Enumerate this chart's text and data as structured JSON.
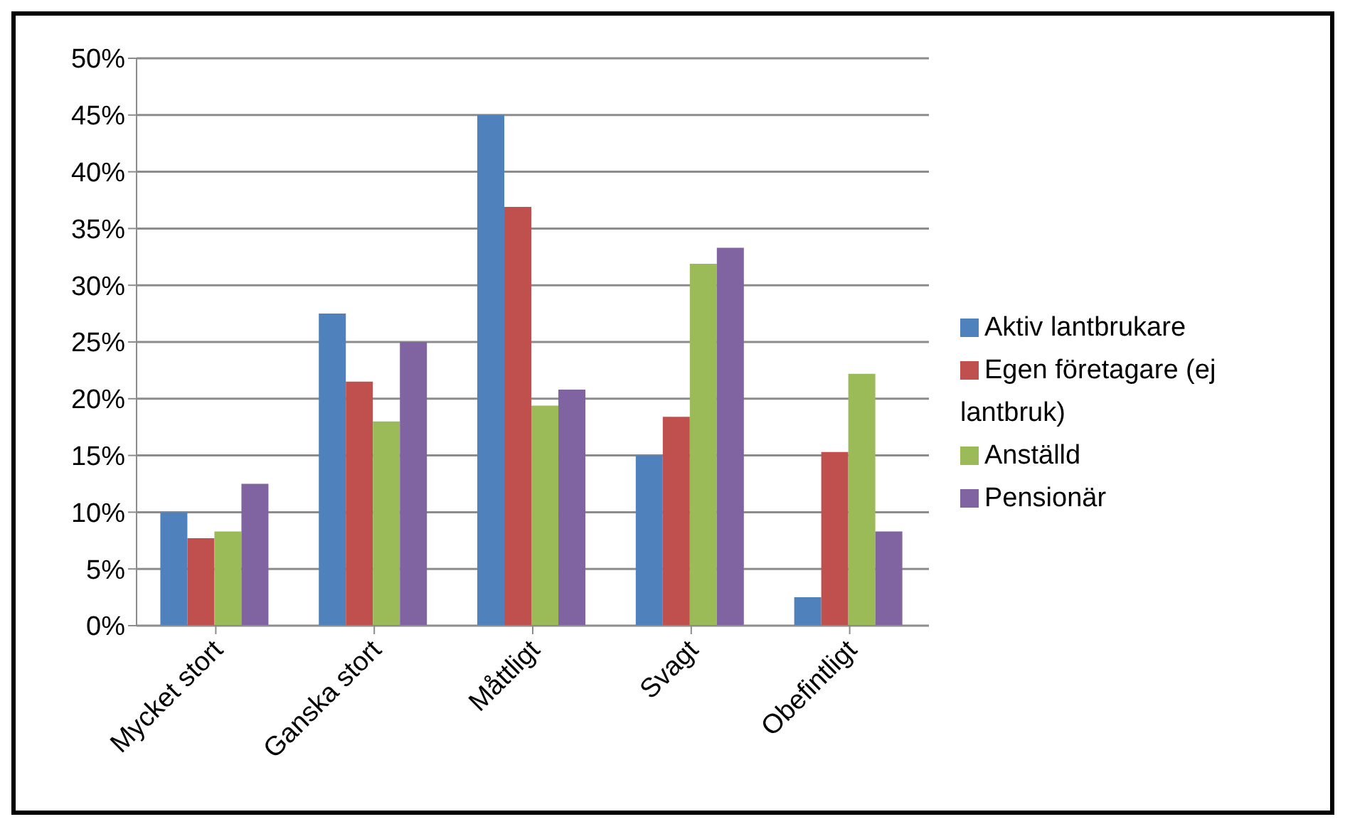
{
  "chart_data": {
    "type": "bar",
    "categories": [
      "Mycket stort",
      "Ganska stort",
      "Måttligt",
      "Svagt",
      "Obefintligt"
    ],
    "series": [
      {
        "name": "Aktiv lantbrukare",
        "color": "#4f81bd",
        "values": [
          10,
          27.5,
          45,
          15,
          2.5
        ]
      },
      {
        "name": "Egen företagare (ej lantbruk)",
        "color": "#c0504d",
        "values": [
          7.7,
          21.5,
          36.9,
          18.4,
          15.3
        ]
      },
      {
        "name": "Anställd",
        "color": "#9bbb59",
        "values": [
          8.3,
          18,
          19.4,
          31.9,
          22.2
        ]
      },
      {
        "name": "Pensionär",
        "color": "#8064a2",
        "values": [
          12.5,
          25,
          20.8,
          33.3,
          8.3
        ]
      }
    ],
    "ylim": [
      0,
      50
    ],
    "yticks": [
      {
        "value": 0,
        "label": "0%"
      },
      {
        "value": 5,
        "label": "5%"
      },
      {
        "value": 10,
        "label": "10%"
      },
      {
        "value": 15,
        "label": "15%"
      },
      {
        "value": 20,
        "label": "20%"
      },
      {
        "value": 25,
        "label": "25%"
      },
      {
        "value": 30,
        "label": "30%"
      },
      {
        "value": 35,
        "label": "35%"
      },
      {
        "value": 40,
        "label": "40%"
      },
      {
        "value": 45,
        "label": "45%"
      },
      {
        "value": 50,
        "label": "50%"
      }
    ],
    "grid": "y",
    "legend": "right"
  }
}
